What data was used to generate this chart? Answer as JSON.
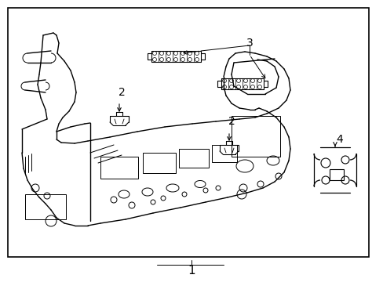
{
  "background_color": "#ffffff",
  "border_color": "#000000",
  "line_color": "#000000",
  "label_color": "#000000",
  "label_1": "1",
  "label_2": "2",
  "label_3": "3",
  "label_4": "4",
  "label_fontsize": 10,
  "fig_width": 4.89,
  "fig_height": 3.6,
  "dpi": 100
}
